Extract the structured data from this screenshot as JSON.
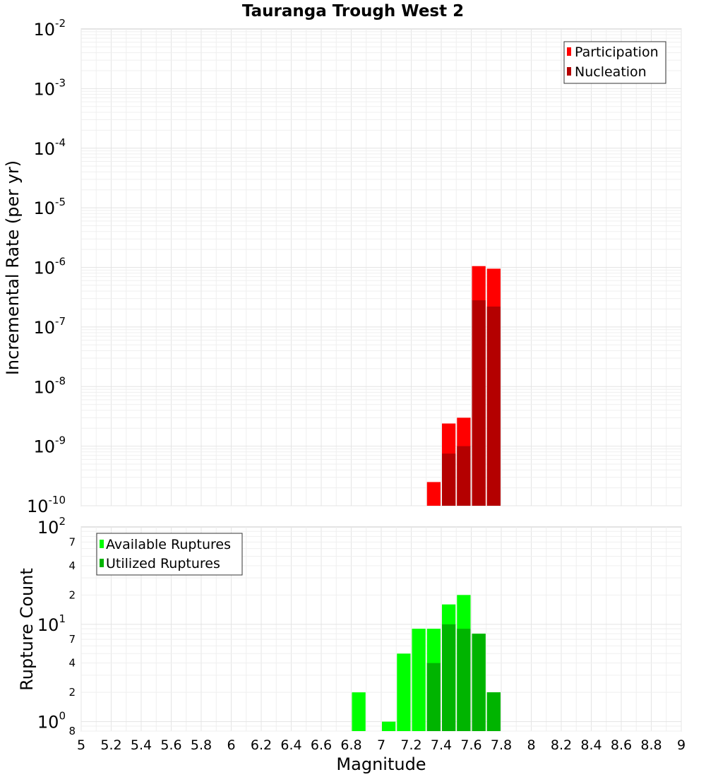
{
  "chart_data": {
    "title": "Tauranga Trough West 2",
    "xlabel": "Magnitude",
    "xlim": [
      5,
      9
    ],
    "x_ticks": [
      "5",
      "5.2",
      "5.4",
      "5.6",
      "5.8",
      "6",
      "6.2",
      "6.4",
      "6.6",
      "6.8",
      "7",
      "7.2",
      "7.4",
      "7.6",
      "7.8",
      "8",
      "8.2",
      "8.4",
      "8.6",
      "8.8",
      "9"
    ],
    "bin_width": 0.1,
    "panels": [
      {
        "type": "bar",
        "ylabel": "Incremental Rate (per yr)",
        "yscale": "log",
        "ylim": [
          1e-10,
          0.01
        ],
        "y_ticks": [
          {
            "value": 1e-10,
            "base": "10",
            "exp": "-10"
          },
          {
            "value": 1e-09,
            "base": "10",
            "exp": "-9"
          },
          {
            "value": 1e-08,
            "base": "10",
            "exp": "-8"
          },
          {
            "value": 1e-07,
            "base": "10",
            "exp": "-7"
          },
          {
            "value": 1e-06,
            "base": "10",
            "exp": "-6"
          },
          {
            "value": 1e-05,
            "base": "10",
            "exp": "-5"
          },
          {
            "value": 0.0001,
            "base": "10",
            "exp": "-4"
          },
          {
            "value": 0.001,
            "base": "10",
            "exp": "-3"
          },
          {
            "value": 0.01,
            "base": "10",
            "exp": "-2"
          }
        ],
        "legend": "top-right",
        "series": [
          {
            "name": "Participation",
            "color": "#ff0000",
            "x": [
              7.35,
              7.45,
              7.55,
              7.65,
              7.75
            ],
            "values": [
              2.5e-10,
              2.4e-09,
              3e-09,
              1.05e-06,
              9.5e-07
            ]
          },
          {
            "name": "Nucleation",
            "color": "#b40000",
            "x": [
              7.45,
              7.55,
              7.65,
              7.75
            ],
            "values": [
              7.5e-10,
              1e-09,
              2.8e-07,
              2.2e-07
            ]
          }
        ]
      },
      {
        "type": "bar",
        "ylabel": "Rupture Count",
        "yscale": "log",
        "ylim": [
          0.8,
          100
        ],
        "y_ticks": [
          {
            "value": 1,
            "base": "10",
            "exp": "0"
          },
          {
            "value": 10,
            "base": "10",
            "exp": "1"
          },
          {
            "value": 100,
            "base": "10",
            "exp": "2"
          }
        ],
        "y_minor_ticks": [
          {
            "value": 0.8,
            "label": "8"
          },
          {
            "value": 2,
            "label": "2"
          },
          {
            "value": 4,
            "label": "4"
          },
          {
            "value": 7,
            "label": "7"
          },
          {
            "value": 20,
            "label": "2"
          },
          {
            "value": 40,
            "label": "4"
          },
          {
            "value": 70,
            "label": "7"
          }
        ],
        "legend": "top-left",
        "series": [
          {
            "name": "Available Ruptures",
            "color": "#00ff00",
            "x": [
              6.85,
              7.05,
              7.15,
              7.25,
              7.35,
              7.45,
              7.55,
              7.65,
              7.75
            ],
            "values": [
              2,
              1,
              5,
              9,
              9,
              16,
              20,
              8,
              2
            ]
          },
          {
            "name": "Utilized Ruptures",
            "color": "#00b400",
            "x": [
              7.35,
              7.45,
              7.55,
              7.65,
              7.75
            ],
            "values": [
              4,
              10,
              9,
              8,
              2
            ]
          }
        ]
      }
    ]
  }
}
